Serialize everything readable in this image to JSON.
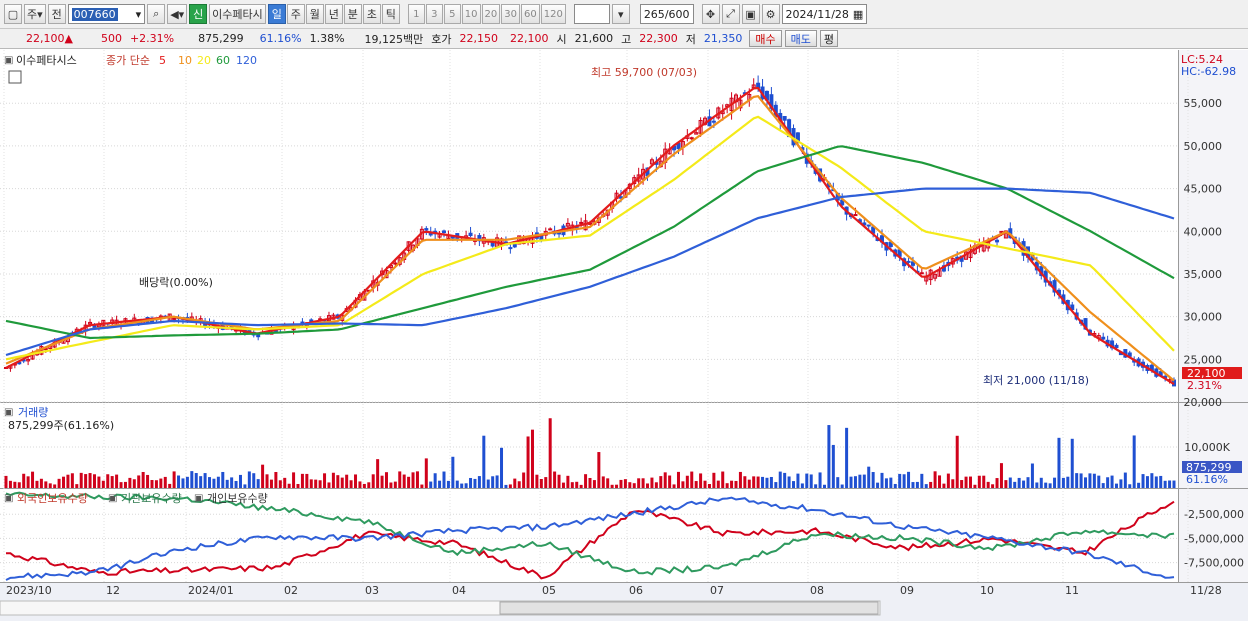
{
  "toolbar": {
    "period_select": "주",
    "prev_label": "전",
    "stock_code": "007660",
    "badge": "신",
    "stock_name": "이수페타시",
    "period_tabs": [
      "일",
      "주",
      "월",
      "년",
      "분",
      "초",
      "틱"
    ],
    "interval_tabs": [
      "1",
      "3",
      "5",
      "10",
      "20",
      "30",
      "60",
      "120"
    ],
    "view_count": "265",
    "view_total": "/600",
    "date": "2024/11/28"
  },
  "quote": {
    "price": "22,100",
    "arrow": "▲",
    "change": "500",
    "change_pct": "+2.31%",
    "volume": "875,299",
    "volume_pct": "61.16%",
    "turnover": "1.38%",
    "amount": "19,125백만",
    "ask_label": "호가",
    "ask": "22,150",
    "bid": "22,100",
    "open_label": "시",
    "open": "21,600",
    "high_label": "고",
    "high": "22,300",
    "low_label": "저",
    "low": "21,350",
    "buy_label": "매수",
    "sell_label": "매도",
    "eval_label": "평"
  },
  "colors": {
    "up": "#d0021b",
    "down": "#1f4fd1",
    "ma5": "#e31b1b",
    "ma10": "#ef8f1c",
    "ma20": "#f4ea1a",
    "ma60": "#1f9a3b",
    "ma120": "#2f5fd8",
    "foreign": "#d0021b",
    "institution": "#2f9a5f",
    "individual": "#2f5fd8"
  },
  "chart_data": [
    {
      "type": "candlestick",
      "title": "이수페타시스",
      "legend": [
        "종가 단순",
        "5",
        "10",
        "20",
        "60",
        "120"
      ],
      "y_ticks": [
        "55,000",
        "50,000",
        "45,000",
        "40,000",
        "35,000",
        "30,000",
        "25,000",
        "20,000"
      ],
      "ylim": [
        20000,
        61000
      ],
      "x_ticks": [
        "2023/10",
        "12",
        "2024/01",
        "02",
        "03",
        "04",
        "05",
        "06",
        "07",
        "08",
        "09",
        "10",
        "11",
        "11/28"
      ],
      "x": [
        "2023-10",
        "2023-11",
        "2023-12",
        "2024-01",
        "2024-02",
        "2024-03",
        "2024-04",
        "2024-05",
        "2024-06",
        "2024-07",
        "2024-08",
        "2024-09",
        "2024-10",
        "2024-11",
        "2024-11-28"
      ],
      "close": [
        24000,
        29000,
        30000,
        28000,
        30000,
        40000,
        38500,
        41000,
        50000,
        57000,
        43000,
        34500,
        40000,
        28000,
        22100
      ],
      "ma": [
        {
          "name": "5",
          "values": [
            24000,
            29000,
            30000,
            28000,
            30000,
            40000,
            38500,
            41000,
            50000,
            57000,
            43000,
            34500,
            40000,
            28000,
            22100
          ]
        },
        {
          "name": "10",
          "values": [
            24500,
            28500,
            30000,
            28500,
            29500,
            39000,
            39000,
            40500,
            49000,
            56000,
            44000,
            35500,
            40000,
            30500,
            22500
          ]
        },
        {
          "name": "20",
          "values": [
            25000,
            27000,
            29000,
            28500,
            29000,
            35000,
            38500,
            39500,
            46000,
            53500,
            47500,
            40000,
            38000,
            36000,
            26000
          ]
        },
        {
          "name": "60",
          "values": [
            29500,
            27500,
            27800,
            28000,
            28500,
            31000,
            33500,
            35500,
            40500,
            47000,
            50000,
            48000,
            45000,
            40000,
            34500
          ]
        },
        {
          "name": "120",
          "values": [
            25500,
            28500,
            29500,
            29000,
            29200,
            29000,
            31000,
            33500,
            37000,
            41500,
            44000,
            45000,
            45000,
            44500,
            41500
          ]
        }
      ],
      "annotations": [
        "최고 59,700 (07/03)",
        "최저 21,000 (11/18)",
        "배당락(0.00%)"
      ],
      "right_labels": [
        "LC:5.24",
        "HC:-62.98",
        "22,100",
        "2.31%"
      ]
    },
    {
      "type": "bar",
      "title": "거래량",
      "subtitle": "875,299주(61.16%)",
      "y_ticks": [
        "10,000K"
      ],
      "last_value": "875,299",
      "last_pct": "61.16%"
    },
    {
      "type": "line",
      "series_names": [
        "외국인보유수량",
        "기관보유수량",
        "개인보유수량"
      ],
      "y_ticks": [
        "-2,500,000",
        "-5,000,000",
        "-7,500,000"
      ],
      "ylim": [
        -9500000,
        0
      ],
      "x": [
        "2023-10",
        "2023-12",
        "2024-01",
        "2024-02",
        "2024-03",
        "2024-04",
        "2024-05",
        "2024-06",
        "2024-07",
        "2024-08",
        "2024-09",
        "2024-10",
        "2024-11",
        "2024-11-28"
      ],
      "series": [
        {
          "name": "외국인보유수량",
          "values": [
            -6500000,
            -8500000,
            -8300000,
            -8000000,
            -4500000,
            -5500000,
            -9000000,
            -2000000,
            -4500000,
            -4200000,
            -6000000,
            -5000000,
            -6500000,
            -1000000
          ]
        },
        {
          "name": "기관보유수량",
          "values": [
            -500000,
            -700000,
            -900000,
            -2000000,
            -3200000,
            -6500000,
            -5500000,
            -8500000,
            -8000000,
            -4500000,
            -5000000,
            -6000000,
            -4200000,
            -4800000
          ]
        },
        {
          "name": "개인보유수량",
          "values": [
            -9000000,
            -8500000,
            -6000000,
            -4800000,
            -5000000,
            -4200000,
            -3800000,
            -2400000,
            -900000,
            -2000000,
            -3800000,
            -5000000,
            -6500000,
            -9200000
          ]
        }
      ]
    }
  ]
}
